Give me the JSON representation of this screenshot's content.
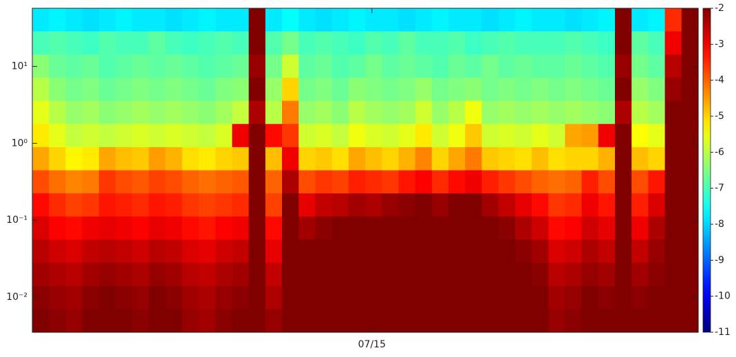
{
  "chart_data": {
    "type": "heatmap",
    "colormap": "jet",
    "yscale": "log",
    "xlim": [
      0,
      40
    ],
    "xticks": [
      {
        "value": 20.4,
        "label": "07/15"
      }
    ],
    "ylim": [
      57,
      0.0035
    ],
    "yticks": [
      {
        "value": 10,
        "label": "10¹"
      },
      {
        "value": 1,
        "label": "10⁰"
      },
      {
        "value": 0.1,
        "label": "10⁻¹"
      },
      {
        "value": 0.01,
        "label": "10⁻²"
      }
    ],
    "zlim": [
      -11,
      -2
    ],
    "zticks": [
      -2,
      -3,
      -4,
      -5,
      -6,
      -7,
      -8,
      -9,
      -10,
      -11
    ],
    "z": [
      [
        -7.8,
        -7.7,
        -7.8,
        -7.9,
        -7.8,
        -7.7,
        -7.8,
        -7.8,
        -7.9,
        -7.8,
        -7.7,
        -7.8,
        -7.8,
        -2,
        -7.8,
        -7.6,
        -7.8,
        -7.9,
        -7.8,
        -7.7,
        -7.8,
        -7.8,
        -7.9,
        -7.8,
        -7.7,
        -7.8,
        -7.8,
        -7.9,
        -7.8,
        -7.7,
        -7.8,
        -7.8,
        -7.9,
        -7.8,
        -7.7,
        -2,
        -7.8,
        -7.7,
        -3.5,
        -2
      ],
      [
        -7,
        -6.9,
        -7,
        -7.1,
        -6.9,
        -7,
        -7,
        -6.8,
        -7,
        -7.1,
        -7,
        -6.9,
        -7,
        -2,
        -6.9,
        -6.6,
        -7,
        -6.9,
        -7,
        -7.1,
        -6.9,
        -7,
        -6.8,
        -7,
        -7,
        -6.9,
        -7.1,
        -7,
        -6.9,
        -7,
        -7,
        -7,
        -6.9,
        -7,
        -7.1,
        -2,
        -6.8,
        -7,
        -3,
        -2
      ],
      [
        -6.4,
        -6.7,
        -6.8,
        -6.7,
        -6.9,
        -6.8,
        -6.7,
        -6.8,
        -6.7,
        -6.8,
        -6.9,
        -6.8,
        -6.7,
        -2.2,
        -6.6,
        -5.8,
        -6.8,
        -6.7,
        -6.9,
        -6.8,
        -6.6,
        -6.8,
        -6.7,
        -6.8,
        -6.9,
        -6.7,
        -6.8,
        -6.6,
        -6.8,
        -6.7,
        -6.8,
        -6.8,
        -6.7,
        -6.8,
        -6.9,
        -2.2,
        -6.6,
        -6.8,
        -2.5,
        -2
      ],
      [
        -6,
        -6.4,
        -6.6,
        -6.5,
        -6.7,
        -6.6,
        -6.5,
        -6.6,
        -6.5,
        -6.6,
        -6.7,
        -6.5,
        -6.4,
        -2,
        -6.3,
        -5,
        -6.6,
        -6.5,
        -6.7,
        -6.4,
        -6.5,
        -6.6,
        -6.5,
        -6.3,
        -6.6,
        -6.5,
        -6.4,
        -6.6,
        -6.5,
        -6.6,
        -6.5,
        -6.6,
        -6.5,
        -6.6,
        -6.7,
        -2,
        -6.3,
        -6.5,
        -2.2,
        -2
      ],
      [
        -5.6,
        -6,
        -6.3,
        -6.2,
        -6.4,
        -6.3,
        -6.2,
        -6.3,
        -6.2,
        -6.3,
        -6.4,
        -6.2,
        -5.9,
        -2.4,
        -6,
        -4.2,
        -6.3,
        -6.2,
        -6.4,
        -6,
        -6.2,
        -6.3,
        -6.2,
        -5.8,
        -6.3,
        -6,
        -5.5,
        -6.3,
        -6.2,
        -6.3,
        -6.2,
        -6.3,
        -6.2,
        -6.3,
        -6.4,
        -2.4,
        -6,
        -6.2,
        -2,
        -2
      ],
      [
        -5.2,
        -5.6,
        -5.9,
        -5.8,
        -5.9,
        -5.8,
        -5.7,
        -5.8,
        -5.7,
        -5.8,
        -5.9,
        -5.7,
        -3,
        -2,
        -3.2,
        -3.6,
        -5.8,
        -5.7,
        -5.9,
        -5.5,
        -5.7,
        -5.8,
        -5.6,
        -5.2,
        -5.8,
        -5.5,
        -4.9,
        -5.8,
        -5.7,
        -5.8,
        -5.6,
        -5.8,
        -4.6,
        -4.5,
        -3,
        -2,
        -5.4,
        -5.6,
        -2,
        -2
      ],
      [
        -4.6,
        -5,
        -5.3,
        -5.2,
        -4.6,
        -4.8,
        -4.9,
        -4.5,
        -4.7,
        -5.1,
        -5.2,
        -5,
        -4.9,
        -2,
        -4.8,
        -3,
        -5,
        -4.9,
        -5.1,
        -4.6,
        -4.8,
        -5,
        -4.7,
        -4.3,
        -5,
        -4.6,
        -4.2,
        -4.9,
        -5,
        -5.1,
        -4.8,
        -5.1,
        -5,
        -5,
        -4.7,
        -2,
        -4.8,
        -5,
        -2,
        -2
      ],
      [
        -3.8,
        -4.1,
        -4.3,
        -4.2,
        -3.6,
        -3.8,
        -3.9,
        -3.7,
        -3.8,
        -4,
        -4.1,
        -4,
        -3.9,
        -2,
        -4,
        -2.4,
        -3.8,
        -3.6,
        -3.7,
        -3.4,
        -3.5,
        -3.6,
        -3.3,
        -3.1,
        -3.5,
        -3.2,
        -3,
        -3.4,
        -3.6,
        -3.8,
        -4,
        -4.1,
        -4,
        -3.4,
        -3.8,
        -2,
        -3.8,
        -3.3,
        -2,
        -2
      ],
      [
        -3.2,
        -3.5,
        -3.7,
        -3.6,
        -3.3,
        -3.4,
        -3.5,
        -3.3,
        -3.4,
        -3.6,
        -3.7,
        -3.6,
        -3.5,
        -2,
        -3.7,
        -2,
        -2.9,
        -2.6,
        -2.5,
        -2.3,
        -2.4,
        -2.2,
        -2.1,
        -2,
        -2.2,
        -2,
        -2,
        -2.3,
        -2.6,
        -2.9,
        -3.2,
        -3.6,
        -3.5,
        -3,
        -3.3,
        -2,
        -3.4,
        -2.8,
        -2,
        -2
      ],
      [
        -2.8,
        -3.1,
        -3.2,
        -3,
        -2.9,
        -3,
        -3.1,
        -2.9,
        -3,
        -3.2,
        -3.3,
        -3.1,
        -3,
        -2,
        -3.2,
        -2,
        -2.3,
        -2.1,
        -2,
        -2,
        -2,
        -2,
        -2,
        -2,
        -2,
        -2,
        -2,
        -2,
        -2.1,
        -2.4,
        -2.7,
        -3.2,
        -3.1,
        -2.7,
        -2.9,
        -2,
        -3,
        -2.4,
        -2,
        -2
      ],
      [
        -2.5,
        -2.7,
        -2.8,
        -2.6,
        -2.5,
        -2.6,
        -2.7,
        -2.5,
        -2.6,
        -2.8,
        -2.9,
        -2.7,
        -2.6,
        -2,
        -2.9,
        -2,
        -2,
        -2,
        -2,
        -2,
        -2,
        -2,
        -2,
        -2,
        -2,
        -2,
        -2,
        -2,
        -2,
        -2.1,
        -2.3,
        -2.8,
        -2.7,
        -2.4,
        -2.6,
        -2,
        -2.6,
        -2.2,
        -2,
        -2
      ],
      [
        -2.3,
        -2.4,
        -2.5,
        -2.3,
        -2.2,
        -2.3,
        -2.4,
        -2.2,
        -2.3,
        -2.5,
        -2.6,
        -2.4,
        -2.3,
        -2,
        -2.6,
        -2,
        -2,
        -2,
        -2,
        -2,
        -2,
        -2,
        -2,
        -2,
        -2,
        -2,
        -2,
        -2,
        -2,
        -2,
        -2.1,
        -2.5,
        -2.4,
        -2.2,
        -2.3,
        -2,
        -2.3,
        -2.1,
        -2,
        -2
      ],
      [
        -2.1,
        -2.2,
        -2.3,
        -2.1,
        -2,
        -2.1,
        -2.2,
        -2,
        -2.1,
        -2.3,
        -2.4,
        -2.2,
        -2.1,
        -2,
        -2.4,
        -2,
        -2,
        -2,
        -2,
        -2,
        -2,
        -2,
        -2,
        -2,
        -2,
        -2,
        -2,
        -2,
        -2,
        -2,
        -2,
        -2.3,
        -2.2,
        -2,
        -2.1,
        -2,
        -2.1,
        -2,
        -2,
        -2
      ],
      [
        -2,
        -2.1,
        -2.2,
        -2,
        -2,
        -2,
        -2.1,
        -2,
        -2,
        -2.2,
        -2.3,
        -2.1,
        -2,
        -2,
        -2.2,
        -2,
        -2,
        -2,
        -2,
        -2,
        -2,
        -2,
        -2,
        -2,
        -2,
        -2,
        -2,
        -2,
        -2,
        -2,
        -2,
        -2.2,
        -2.1,
        -2,
        -2,
        -2,
        -2,
        -2,
        -2,
        -2
      ]
    ]
  }
}
